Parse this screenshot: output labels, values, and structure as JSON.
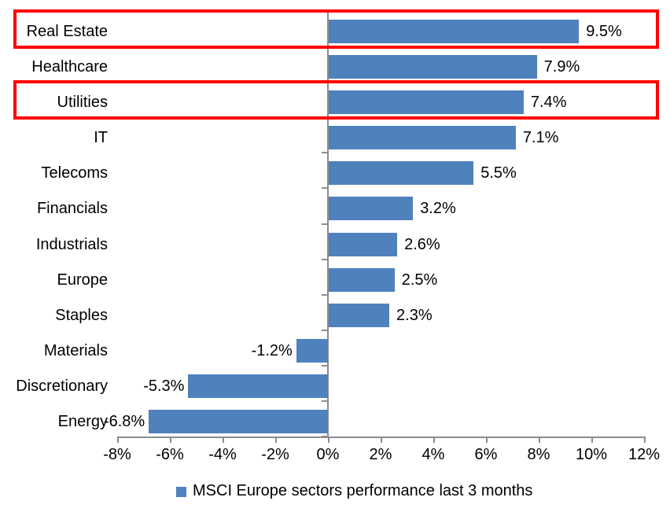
{
  "chart_data": {
    "type": "bar",
    "orientation": "horizontal",
    "categories": [
      "Real Estate",
      "Healthcare",
      "Utilities",
      "IT",
      "Telecoms",
      "Financials",
      "Industrials",
      "Europe",
      "Staples",
      "Materials",
      "Discretionary",
      "Energy"
    ],
    "values": [
      9.5,
      7.9,
      7.4,
      7.1,
      5.5,
      3.2,
      2.6,
      2.5,
      2.3,
      -1.2,
      -5.3,
      -6.8
    ],
    "data_labels": [
      "9.5%",
      "7.9%",
      "7.4%",
      "7.1%",
      "5.5%",
      "3.2%",
      "2.6%",
      "2.5%",
      "2.3%",
      "-1.2%",
      "-5.3%",
      "-6.8%"
    ],
    "x_ticks": [
      "-8%",
      "-6%",
      "-4%",
      "-2%",
      "0%",
      "2%",
      "4%",
      "6%",
      "8%",
      "10%",
      "12%"
    ],
    "x_tick_values": [
      -8,
      -6,
      -4,
      -2,
      0,
      2,
      4,
      6,
      8,
      10,
      12
    ],
    "xlim": [
      -8,
      12
    ],
    "grid": false,
    "bar_color": "#4F81BD",
    "axis_color": "#8C8C8C",
    "text_color": "#000000",
    "legend": {
      "position": "bottom",
      "label": "MSCI Europe sectors performance last 3 months",
      "marker_color": "#4F81BD"
    },
    "highlights": [
      {
        "category": "Real Estate",
        "row_index": 0,
        "border_color": "#FF0000"
      },
      {
        "category": "Utilities",
        "row_index": 2,
        "border_color": "#FF0000"
      }
    ]
  }
}
